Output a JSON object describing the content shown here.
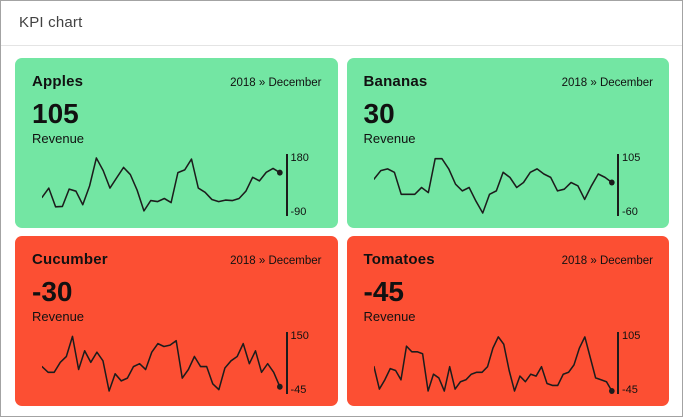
{
  "page": {
    "title": "KPI chart"
  },
  "colors": {
    "page_bg": "#ffffff",
    "outer_border": "#a3a3a3",
    "header_divider": "#e4e4e4",
    "page_title_text": "#424242",
    "card_text": "#111111",
    "positive_bg": "#73e6a3",
    "negative_bg": "#fc4f33",
    "line": "#1c1c1c"
  },
  "cards": [
    {
      "name": "Apples",
      "period": "2018 » December",
      "value": "105",
      "metric": "Revenue",
      "status": "positive",
      "axis_max": "180",
      "axis_min": "-90"
    },
    {
      "name": "Bananas",
      "period": "2018 » December",
      "value": "30",
      "metric": "Revenue",
      "status": "positive",
      "axis_max": "105",
      "axis_min": "-60"
    },
    {
      "name": "Cucumber",
      "period": "2018 » December",
      "value": "-30",
      "metric": "Revenue",
      "status": "negative",
      "axis_max": "150",
      "axis_min": "-45"
    },
    {
      "name": "Tomatoes",
      "period": "2018 » December",
      "value": "-45",
      "metric": "Revenue",
      "status": "negative",
      "axis_max": "105",
      "axis_min": "-45"
    }
  ],
  "chart_data": [
    {
      "type": "line",
      "title": "Apples Revenue sparkline, 2018 December",
      "ylabel": "Revenue",
      "ylim": [
        -90,
        180
      ],
      "last_value": 105,
      "legend": "off",
      "grid": "off",
      "values": [
        -15,
        30,
        -60,
        -58,
        25,
        15,
        -50,
        40,
        175,
        115,
        30,
        80,
        130,
        95,
        20,
        -80,
        -30,
        -35,
        -20,
        -40,
        105,
        118,
        170,
        30,
        10,
        -25,
        -35,
        -28,
        -30,
        -20,
        15,
        82,
        65,
        106,
        125,
        105
      ]
    },
    {
      "type": "line",
      "title": "Bananas Revenue sparkline, 2018 December",
      "ylabel": "Revenue",
      "ylim": [
        -60,
        105
      ],
      "last_value": 30,
      "legend": "off",
      "grid": "off",
      "values": [
        40,
        65,
        70,
        60,
        -5,
        -5,
        -5,
        15,
        0,
        100,
        100,
        70,
        25,
        5,
        15,
        -25,
        -60,
        -5,
        5,
        60,
        45,
        15,
        30,
        60,
        70,
        55,
        45,
        5,
        10,
        30,
        20,
        -20,
        20,
        55,
        45,
        30
      ]
    },
    {
      "type": "line",
      "title": "Cucumber Revenue sparkline, 2018 December",
      "ylabel": "Revenue",
      "ylim": [
        -45,
        150
      ],
      "last_value": -30,
      "legend": "off",
      "grid": "off",
      "values": [
        40,
        20,
        20,
        55,
        75,
        145,
        30,
        95,
        55,
        90,
        60,
        -45,
        15,
        -10,
        0,
        40,
        50,
        30,
        90,
        120,
        110,
        115,
        130,
        0,
        30,
        75,
        40,
        40,
        -20,
        -40,
        35,
        60,
        75,
        120,
        50,
        95,
        20,
        50,
        20,
        -30
      ]
    },
    {
      "type": "line",
      "title": "Tomatoes Revenue sparkline, 2018 December",
      "ylabel": "Revenue",
      "ylim": [
        -45,
        105
      ],
      "last_value": -45,
      "legend": "off",
      "grid": "off",
      "values": [
        20,
        -40,
        -15,
        15,
        10,
        -15,
        75,
        60,
        60,
        55,
        -45,
        0,
        -10,
        -45,
        20,
        -40,
        -20,
        -15,
        0,
        5,
        5,
        20,
        70,
        100,
        80,
        10,
        -45,
        -5,
        -20,
        0,
        -5,
        20,
        -25,
        -30,
        -30,
        0,
        5,
        25,
        70,
        100,
        45,
        -10,
        -15,
        -20,
        -45
      ]
    }
  ]
}
